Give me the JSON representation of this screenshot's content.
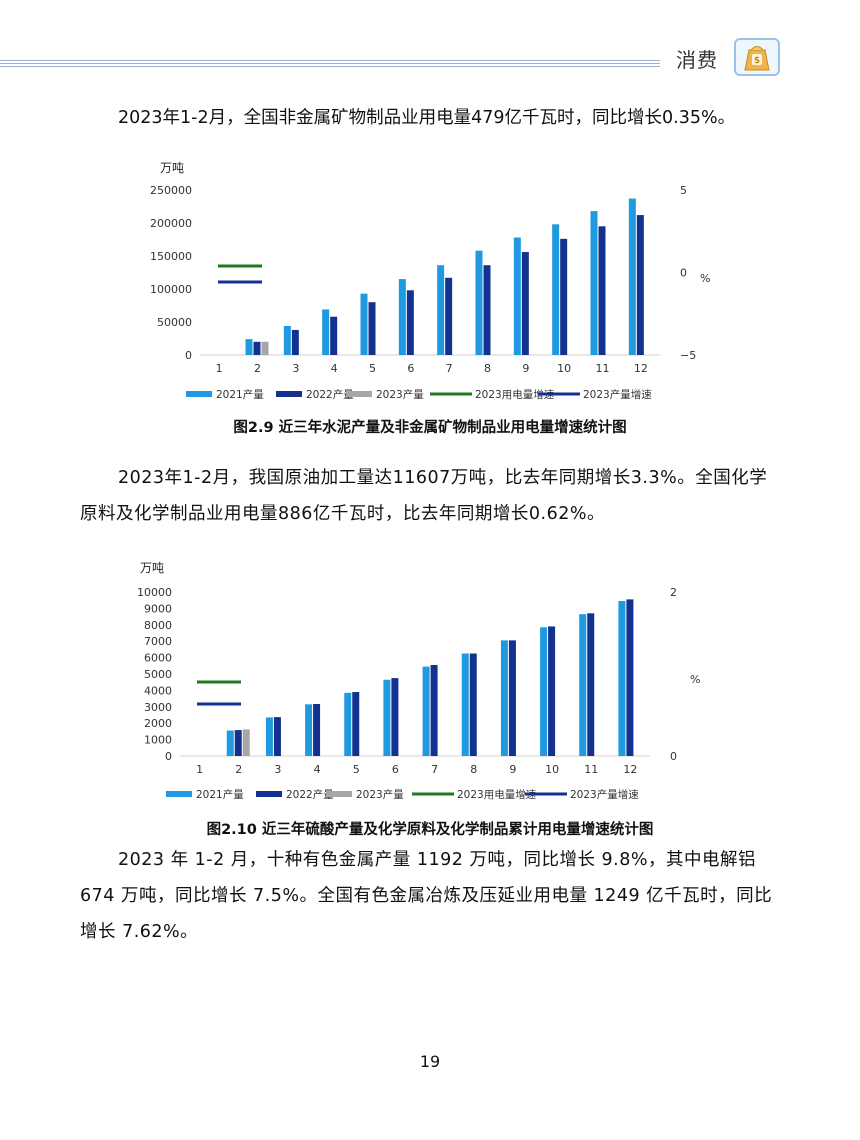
{
  "header": {
    "section_title": "消费"
  },
  "text_blocks": {
    "p1": "2023年1-2月，全国非金属矿物制品业用电量479亿千瓦时，同比增长0.35%。",
    "p2": "2023年1-2月，我国原油加工量达11607万吨，比去年同期增长3.3%。全国化学原料及化学制品业用电量886亿千瓦时，比去年同期增长0.62%。",
    "p3": "2023 年 1-2 月，十种有色金属产量 1192 万吨，同比增长 9.8%，其中电解铝 674 万吨，同比增长 7.5%。全国有色金属冶炼及压延业用电量 1249 亿千瓦时，同比增长 7.62%。"
  },
  "captions": {
    "fig1": "图2.9  近三年水泥产量及非金属矿物制品业用电量增速统计图",
    "fig2": "图2.10  近三年硫酸产量及化学原料及化学制品累计用电量增速统计图"
  },
  "page_number": "19",
  "chart_data": [
    {
      "type": "bar",
      "ylabel": "万吨",
      "y2label": "%",
      "categories": [
        "1",
        "2",
        "3",
        "4",
        "5",
        "6",
        "7",
        "8",
        "9",
        "10",
        "11",
        "12"
      ],
      "ylim": [
        0,
        250000
      ],
      "yticks": [
        "0",
        "50000",
        "100000",
        "150000",
        "200000",
        "250000"
      ],
      "y2lim": [
        -5,
        5
      ],
      "y2ticks": [
        "−5",
        "0",
        "5"
      ],
      "series": [
        {
          "name": "2021产量",
          "color": "#1f9ae0",
          "values": [
            null,
            24000,
            44000,
            69000,
            93000,
            115000,
            136000,
            158000,
            178000,
            198000,
            218000,
            237000
          ]
        },
        {
          "name": "2022产量",
          "color": "#13318f",
          "values": [
            null,
            20000,
            38000,
            58000,
            80000,
            98000,
            117000,
            136000,
            156000,
            176000,
            195000,
            212000
          ]
        },
        {
          "name": "2023产量",
          "color": "#a6a6a6",
          "values": [
            null,
            20000,
            null,
            null,
            null,
            null,
            null,
            null,
            null,
            null,
            null,
            null
          ]
        }
      ],
      "legend_lines": [
        {
          "name": "2023用电量增速",
          "color": "#1f7a1f"
        },
        {
          "name": "2023产量增速",
          "color": "#13318f"
        }
      ],
      "legend_position": "bottom"
    },
    {
      "type": "bar",
      "ylabel": "万吨",
      "y2label": "%",
      "categories": [
        "1",
        "2",
        "3",
        "4",
        "5",
        "6",
        "7",
        "8",
        "9",
        "10",
        "11",
        "12"
      ],
      "ylim": [
        0,
        10000
      ],
      "yticks": [
        "0",
        "1000",
        "2000",
        "3000",
        "4000",
        "5000",
        "6000",
        "7000",
        "8000",
        "9000",
        "10000"
      ],
      "y2lim": [
        0,
        2
      ],
      "y2ticks": [
        "0",
        "2"
      ],
      "series": [
        {
          "name": "2021产量",
          "color": "#1f9ae0",
          "values": [
            null,
            1550,
            2350,
            3150,
            3850,
            4650,
            5450,
            6250,
            7050,
            7850,
            8650,
            9450
          ]
        },
        {
          "name": "2022产量",
          "color": "#13318f",
          "values": [
            null,
            1580,
            2370,
            3170,
            3900,
            4750,
            5550,
            6250,
            7050,
            7900,
            8700,
            9550
          ]
        },
        {
          "name": "2023产量",
          "color": "#a6a6a6",
          "values": [
            null,
            1620,
            null,
            null,
            null,
            null,
            null,
            null,
            null,
            null,
            null,
            null
          ]
        }
      ],
      "legend_lines": [
        {
          "name": "2023用电量增速",
          "color": "#1f7a1f"
        },
        {
          "name": "2023产量增速",
          "color": "#13318f"
        }
      ],
      "legend_position": "bottom"
    }
  ]
}
